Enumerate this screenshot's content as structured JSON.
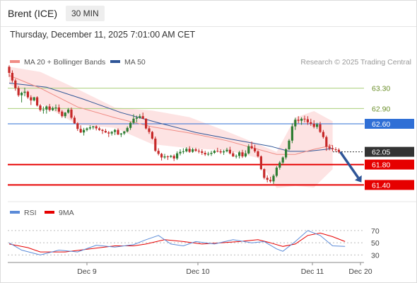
{
  "header": {
    "instrument": "Brent (ICE)",
    "interval": "30 MIN"
  },
  "timestamp": "Thursday, December 11, 2025 7:01:00 AM CET",
  "copyright": "Research © 2025 Trading Central",
  "colors": {
    "up": "#2e7d32",
    "down": "#c62828",
    "ma20": "#f08c85",
    "ma50": "#2f5597",
    "band_fill": "#fde3e3",
    "support": "#e60000",
    "resistance_green": "#a9cf7a",
    "pivot_blue": "#2f6fd6",
    "last_price": "#333333",
    "arrow": "#2f5597",
    "rsi": "#5b8bd8",
    "rsi_ma": "#e60000"
  },
  "chart_data": [
    {
      "type": "candlestick",
      "legend": [
        "MA 20 + Bollinger Bands",
        "MA 50"
      ],
      "legend_placement": "top-left",
      "ylim": [
        61.1,
        63.6
      ],
      "x_tick_labels": [
        "Dec 9",
        "Dec 10",
        "Dec 11",
        "Dec 20"
      ],
      "levels": [
        {
          "value": 63.3,
          "label": "63.30",
          "kind": "resistance"
        },
        {
          "value": 62.9,
          "label": "62.90",
          "kind": "resistance"
        },
        {
          "value": 62.6,
          "label": "62.60",
          "kind": "pivot"
        },
        {
          "value": 62.05,
          "label": "62.05",
          "kind": "last"
        },
        {
          "value": 61.8,
          "label": "61.80",
          "kind": "support"
        },
        {
          "value": 61.4,
          "label": "61.40",
          "kind": "support"
        }
      ],
      "candles": [
        [
          63.72,
          63.75,
          63.52,
          63.6
        ],
        [
          63.6,
          63.65,
          63.41,
          63.45
        ],
        [
          63.45,
          63.48,
          63.25,
          63.3
        ],
        [
          63.3,
          63.34,
          63.13,
          63.16
        ],
        [
          63.16,
          63.23,
          63.02,
          63.21
        ],
        [
          63.21,
          63.31,
          63.14,
          63.23
        ],
        [
          63.23,
          63.25,
          63.09,
          63.12
        ],
        [
          63.12,
          63.16,
          62.97,
          63.06
        ],
        [
          63.06,
          63.13,
          63.04,
          63.12
        ],
        [
          63.12,
          63.14,
          62.94,
          62.96
        ],
        [
          62.96,
          62.99,
          62.84,
          62.87
        ],
        [
          62.87,
          62.94,
          62.8,
          62.88
        ],
        [
          62.88,
          62.96,
          62.8,
          62.94
        ],
        [
          62.94,
          62.99,
          62.84,
          62.87
        ],
        [
          62.87,
          62.94,
          62.85,
          62.91
        ],
        [
          62.91,
          62.98,
          62.85,
          62.92
        ],
        [
          62.92,
          62.98,
          62.8,
          62.84
        ],
        [
          62.84,
          62.87,
          62.72,
          62.75
        ],
        [
          62.75,
          62.83,
          62.71,
          62.82
        ],
        [
          62.82,
          62.91,
          62.8,
          62.88
        ],
        [
          62.88,
          62.92,
          62.69,
          62.72
        ],
        [
          62.72,
          62.76,
          62.6,
          62.61
        ],
        [
          62.61,
          62.63,
          62.46,
          62.5
        ],
        [
          62.5,
          62.57,
          62.42,
          62.43
        ],
        [
          62.43,
          62.52,
          62.37,
          62.48
        ],
        [
          62.48,
          62.53,
          62.45,
          62.51
        ],
        [
          62.51,
          62.57,
          62.48,
          62.53
        ],
        [
          62.53,
          62.56,
          62.49,
          62.55
        ],
        [
          62.55,
          62.57,
          62.47,
          62.51
        ],
        [
          62.51,
          62.54,
          62.46,
          62.48
        ],
        [
          62.48,
          62.5,
          62.4,
          62.46
        ],
        [
          62.46,
          62.5,
          62.42,
          62.43
        ],
        [
          62.43,
          62.46,
          62.34,
          62.41
        ],
        [
          62.41,
          62.46,
          62.37,
          62.44
        ],
        [
          62.44,
          62.5,
          62.38,
          62.48
        ],
        [
          62.48,
          62.51,
          62.38,
          62.39
        ],
        [
          62.39,
          62.42,
          62.34,
          62.41
        ],
        [
          62.41,
          62.46,
          62.38,
          62.45
        ],
        [
          62.45,
          62.55,
          62.43,
          62.52
        ],
        [
          62.52,
          62.64,
          62.48,
          62.62
        ],
        [
          62.62,
          62.79,
          62.59,
          62.7
        ],
        [
          62.7,
          62.76,
          62.63,
          62.72
        ],
        [
          62.72,
          62.79,
          62.7,
          62.75
        ],
        [
          62.75,
          62.82,
          62.69,
          62.7
        ],
        [
          62.7,
          62.71,
          62.49,
          62.51
        ],
        [
          62.51,
          62.55,
          62.4,
          62.44
        ],
        [
          62.44,
          62.46,
          62.29,
          62.31
        ],
        [
          62.31,
          62.35,
          62.05,
          62.07
        ],
        [
          62.07,
          62.12,
          61.98,
          62.01
        ],
        [
          62.01,
          62.03,
          61.88,
          61.94
        ],
        [
          61.94,
          62.01,
          61.91,
          61.96
        ],
        [
          61.96,
          61.98,
          61.89,
          61.95
        ],
        [
          61.95,
          61.99,
          61.93,
          61.97
        ],
        [
          61.97,
          62.0,
          61.87,
          61.92
        ],
        [
          61.92,
          62.06,
          61.89,
          62.02
        ],
        [
          62.02,
          62.1,
          61.98,
          62.05
        ],
        [
          62.05,
          62.12,
          62.01,
          62.06
        ],
        [
          62.06,
          62.14,
          62.04,
          62.11
        ],
        [
          62.11,
          62.16,
          62.03,
          62.05
        ],
        [
          62.05,
          62.13,
          62.03,
          62.1
        ],
        [
          62.1,
          62.13,
          62.05,
          62.07
        ],
        [
          62.07,
          62.11,
          62.02,
          62.06
        ],
        [
          62.06,
          62.1,
          61.99,
          62.03
        ],
        [
          62.03,
          62.07,
          61.97,
          62.0
        ],
        [
          62.0,
          62.05,
          61.97,
          62.01
        ],
        [
          62.01,
          62.07,
          61.97,
          62.03
        ],
        [
          62.03,
          62.09,
          62.01,
          62.07
        ],
        [
          62.07,
          62.13,
          62.04,
          62.06
        ],
        [
          62.06,
          62.1,
          62.01,
          62.04
        ],
        [
          62.04,
          62.09,
          61.99,
          62.06
        ],
        [
          62.06,
          62.13,
          62.04,
          62.09
        ],
        [
          62.09,
          62.15,
          62.0,
          62.02
        ],
        [
          62.02,
          62.06,
          61.95,
          61.96
        ],
        [
          61.96,
          62.0,
          61.92,
          61.97
        ],
        [
          61.97,
          62.07,
          61.92,
          62.04
        ],
        [
          62.04,
          62.09,
          61.93,
          61.96
        ],
        [
          61.96,
          62.08,
          61.94,
          62.02
        ],
        [
          62.02,
          62.2,
          62.0,
          62.16
        ],
        [
          62.16,
          62.25,
          62.1,
          62.12
        ],
        [
          62.12,
          62.19,
          62.03,
          62.06
        ],
        [
          62.06,
          62.08,
          61.94,
          61.96
        ],
        [
          61.96,
          61.98,
          61.69,
          61.71
        ],
        [
          61.71,
          61.73,
          61.51,
          61.54
        ],
        [
          61.54,
          61.59,
          61.45,
          61.5
        ],
        [
          61.5,
          61.56,
          61.44,
          61.47
        ],
        [
          61.47,
          61.61,
          61.42,
          61.58
        ],
        [
          61.58,
          61.77,
          61.55,
          61.74
        ],
        [
          61.74,
          61.87,
          61.7,
          61.84
        ],
        [
          61.84,
          61.96,
          61.8,
          61.94
        ],
        [
          61.94,
          62.12,
          61.9,
          62.1
        ],
        [
          62.1,
          62.3,
          62.08,
          62.27
        ],
        [
          62.27,
          62.61,
          62.22,
          62.55
        ],
        [
          62.55,
          62.72,
          62.48,
          62.68
        ],
        [
          62.68,
          62.75,
          62.61,
          62.66
        ],
        [
          62.66,
          62.73,
          62.58,
          62.7
        ],
        [
          62.7,
          62.76,
          62.63,
          62.69
        ],
        [
          62.69,
          62.75,
          62.58,
          62.63
        ],
        [
          62.63,
          62.7,
          62.56,
          62.6
        ],
        [
          62.6,
          62.67,
          62.51,
          62.54
        ],
        [
          62.54,
          62.62,
          62.5,
          62.59
        ],
        [
          62.59,
          62.64,
          62.42,
          62.44
        ],
        [
          62.44,
          62.48,
          62.31,
          62.34
        ],
        [
          62.34,
          62.37,
          62.07,
          62.15
        ],
        [
          62.15,
          62.2,
          62.08,
          62.12
        ],
        [
          62.12,
          62.18,
          62.06,
          62.1
        ],
        [
          62.1,
          62.14,
          62.05,
          62.09
        ],
        [
          62.09,
          62.12,
          62.02,
          62.05
        ]
      ],
      "ma20": [
        [
          0,
          63.55
        ],
        [
          10,
          63.3
        ],
        [
          22,
          62.93
        ],
        [
          34,
          62.72
        ],
        [
          46,
          62.54
        ],
        [
          58,
          62.42
        ],
        [
          70,
          62.27
        ],
        [
          80,
          62.1
        ],
        [
          86,
          62.0
        ],
        [
          92,
          62.0
        ],
        [
          98,
          62.1
        ],
        [
          104,
          62.18
        ]
      ],
      "ma50": [
        [
          0,
          63.4
        ],
        [
          12,
          63.32
        ],
        [
          24,
          63.08
        ],
        [
          36,
          62.82
        ],
        [
          48,
          62.62
        ],
        [
          60,
          62.43
        ],
        [
          72,
          62.29
        ],
        [
          84,
          62.16
        ],
        [
          90,
          62.06
        ],
        [
          96,
          62.06
        ],
        [
          102,
          62.1
        ],
        [
          104,
          62.12
        ]
      ],
      "bb_upper": [
        [
          0,
          63.72
        ],
        [
          10,
          63.62
        ],
        [
          22,
          63.28
        ],
        [
          34,
          62.92
        ],
        [
          46,
          62.86
        ],
        [
          58,
          62.73
        ],
        [
          70,
          62.45
        ],
        [
          80,
          62.2
        ],
        [
          86,
          62.05
        ],
        [
          92,
          62.72
        ],
        [
          98,
          62.85
        ],
        [
          104,
          62.65
        ]
      ],
      "bb_lower": [
        [
          0,
          63.38
        ],
        [
          10,
          63.0
        ],
        [
          22,
          62.58
        ],
        [
          34,
          62.52
        ],
        [
          46,
          62.2
        ],
        [
          58,
          62.12
        ],
        [
          70,
          62.08
        ],
        [
          80,
          61.93
        ],
        [
          86,
          61.34
        ],
        [
          92,
          61.38
        ],
        [
          98,
          61.35
        ],
        [
          104,
          61.71
        ]
      ],
      "projection": {
        "from": 62.05,
        "to": 61.45
      }
    },
    {
      "type": "line",
      "legend": [
        "RSI",
        "9MA"
      ],
      "legend_placement": "top-left",
      "ylim": [
        20,
        85
      ],
      "y_ticks": [
        70,
        50,
        30
      ],
      "rsi": [
        [
          0,
          50
        ],
        [
          4,
          38
        ],
        [
          10,
          30
        ],
        [
          16,
          38
        ],
        [
          22,
          35
        ],
        [
          28,
          46
        ],
        [
          34,
          43
        ],
        [
          40,
          47
        ],
        [
          44,
          55
        ],
        [
          48,
          62
        ],
        [
          52,
          48
        ],
        [
          56,
          45
        ],
        [
          60,
          52
        ],
        [
          66,
          48
        ],
        [
          72,
          55
        ],
        [
          78,
          50
        ],
        [
          82,
          52
        ],
        [
          86,
          40
        ],
        [
          88,
          36
        ],
        [
          92,
          52
        ],
        [
          96,
          70
        ],
        [
          100,
          62
        ],
        [
          104,
          45
        ],
        [
          108,
          44
        ]
      ],
      "rsi_ma": [
        [
          0,
          48
        ],
        [
          6,
          42
        ],
        [
          10,
          35
        ],
        [
          18,
          35
        ],
        [
          26,
          40
        ],
        [
          34,
          45
        ],
        [
          40,
          45
        ],
        [
          44,
          48
        ],
        [
          50,
          55
        ],
        [
          56,
          52
        ],
        [
          62,
          48
        ],
        [
          68,
          50
        ],
        [
          74,
          52
        ],
        [
          80,
          55
        ],
        [
          84,
          50
        ],
        [
          88,
          44
        ],
        [
          92,
          48
        ],
        [
          96,
          62
        ],
        [
          100,
          66
        ],
        [
          104,
          60
        ],
        [
          108,
          52
        ]
      ]
    }
  ]
}
